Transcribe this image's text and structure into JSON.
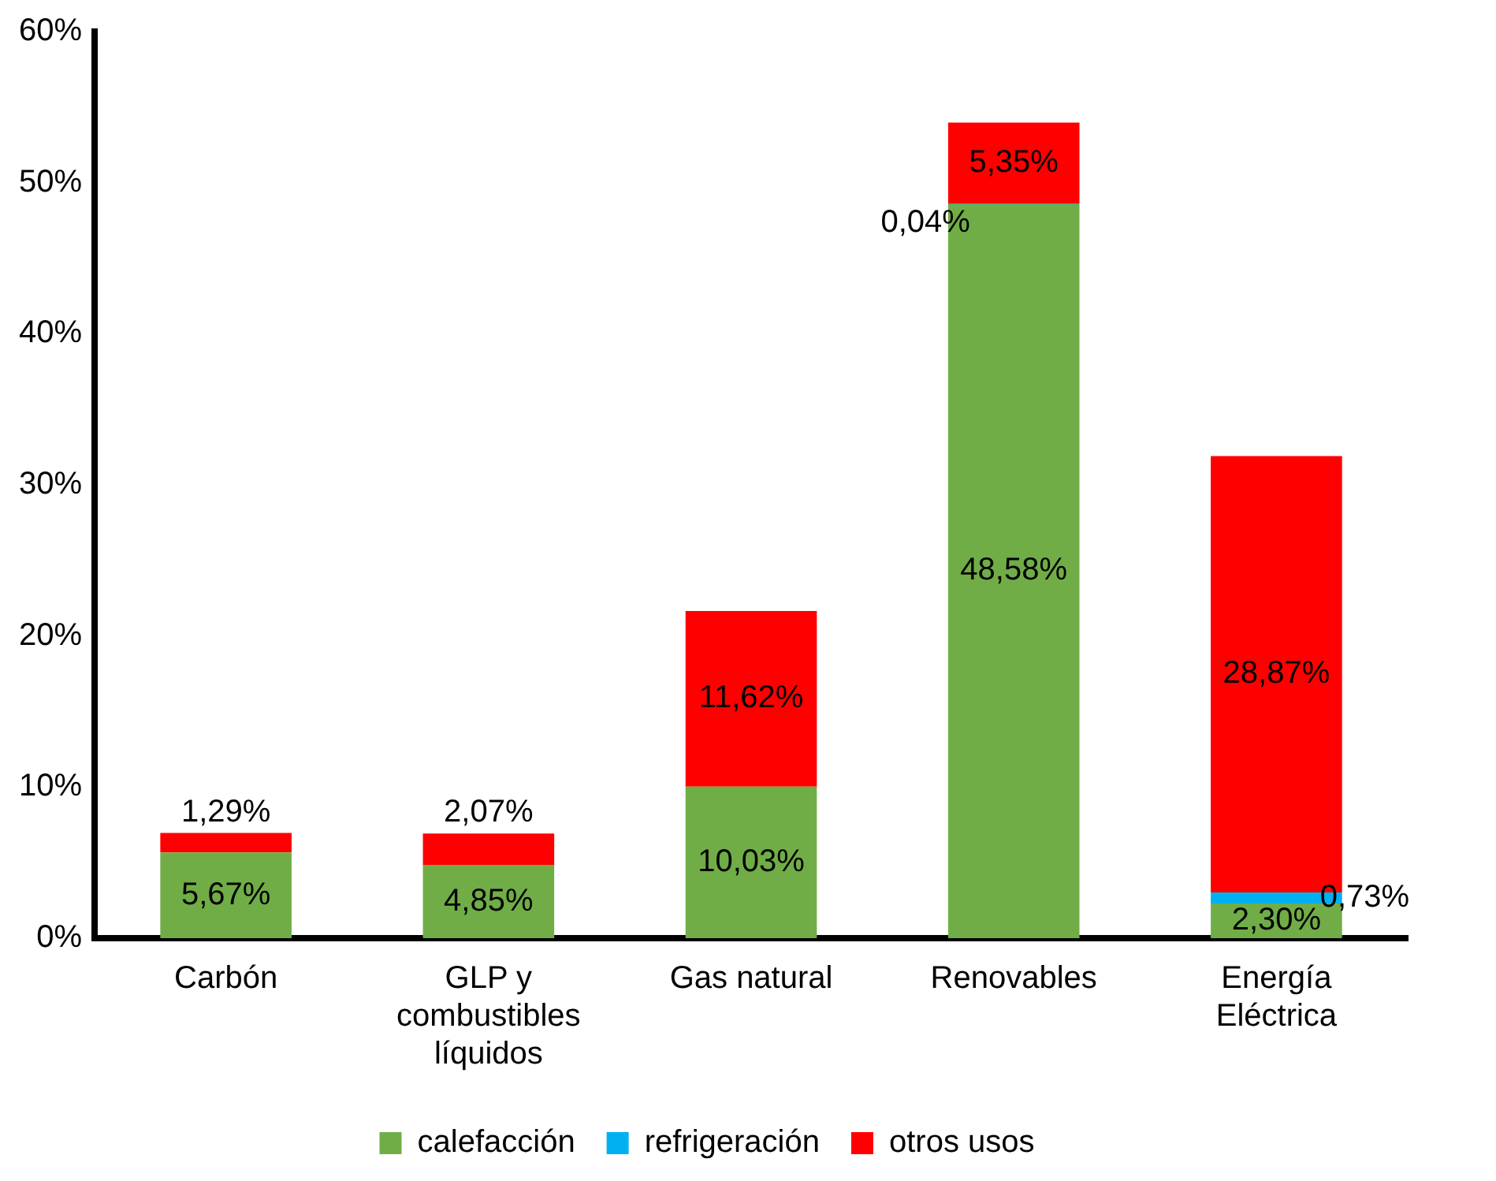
{
  "chart_data": {
    "type": "bar",
    "stacked": true,
    "categories": [
      "Carbón",
      "GLP y combustibles líquidos",
      "Gas natural",
      "Renovables",
      "Energía Eléctrica"
    ],
    "series": [
      {
        "name": "calefacción",
        "color": "#70ad47",
        "values": [
          5.67,
          4.85,
          10.03,
          48.58,
          2.3
        ],
        "value_labels": [
          "5,67%",
          "4,85%",
          "10,03%",
          "48,58%",
          "2,30%"
        ]
      },
      {
        "name": "refrigeración",
        "color": "#00b0f0",
        "values": [
          null,
          null,
          null,
          0.04,
          0.73
        ],
        "value_labels": [
          null,
          null,
          null,
          "0,04%",
          "0,73%"
        ]
      },
      {
        "name": "otros usos",
        "color": "#ff0000",
        "values": [
          1.29,
          2.07,
          11.62,
          5.35,
          28.87
        ],
        "value_labels": [
          "1,29%",
          "2,07%",
          "11,62%",
          "5,35%",
          "28,87%"
        ]
      }
    ],
    "ylim": [
      0,
      60
    ],
    "yticks": [
      {
        "value": 0,
        "label": "0%"
      },
      {
        "value": 10,
        "label": "10%"
      },
      {
        "value": 20,
        "label": "20%"
      },
      {
        "value": 30,
        "label": "30%"
      },
      {
        "value": 40,
        "label": "40%"
      },
      {
        "value": 50,
        "label": "50%"
      },
      {
        "value": 60,
        "label": "60%"
      }
    ],
    "grid": false,
    "legend": "bottom"
  }
}
